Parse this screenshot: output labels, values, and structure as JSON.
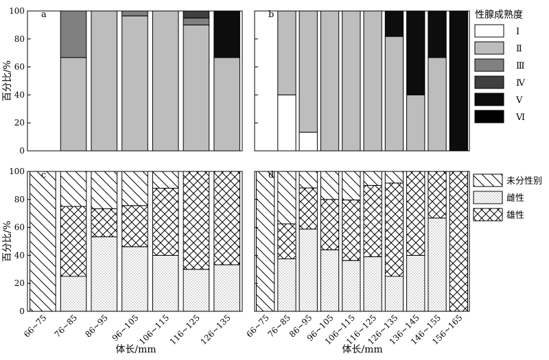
{
  "figure": {
    "ylabel": "百分比/%",
    "xlabel": "体长/mm"
  },
  "legend_top": {
    "title": "性腺成熟度",
    "items": [
      {
        "label": "Ⅰ",
        "fill": "#ffffff"
      },
      {
        "label": "Ⅱ",
        "fill": "#bdbdbd"
      },
      {
        "label": "Ⅲ",
        "fill": "#808080"
      },
      {
        "label": "Ⅳ",
        "fill": "#404040"
      },
      {
        "label": "Ⅴ",
        "fill": "#0d0d0d"
      },
      {
        "label": "Ⅵ",
        "fill": "#000000"
      }
    ]
  },
  "legend_bottom": {
    "items": [
      {
        "label": "未分性别",
        "pattern": "diag"
      },
      {
        "label": "雌性",
        "pattern": "dots"
      },
      {
        "label": "雄性",
        "pattern": "cross"
      }
    ]
  },
  "chart_data": [
    {
      "panel": "a",
      "type": "bar",
      "stacked": true,
      "ylabel": "百分比/%",
      "ylim": [
        0,
        100
      ],
      "yticks": [
        0,
        20,
        40,
        60,
        80,
        100
      ],
      "categories": [
        "66~75",
        "76~85",
        "86~95",
        "96~105",
        "106~115",
        "116~125",
        "126~135"
      ],
      "series": [
        {
          "name": "Ⅰ",
          "values": [
            0,
            0,
            0,
            0,
            0,
            0,
            0
          ]
        },
        {
          "name": "Ⅱ",
          "values": [
            0,
            66.7,
            100,
            96.5,
            100,
            90,
            66.7
          ]
        },
        {
          "name": "Ⅲ",
          "values": [
            0,
            33.3,
            0,
            3.5,
            0,
            5,
            0
          ]
        },
        {
          "name": "Ⅳ",
          "values": [
            0,
            0,
            0,
            0,
            0,
            5,
            0
          ]
        },
        {
          "name": "Ⅴ",
          "values": [
            0,
            0,
            0,
            0,
            0,
            0,
            33.3
          ]
        },
        {
          "name": "Ⅵ",
          "values": [
            0,
            0,
            0,
            0,
            0,
            0,
            0
          ]
        }
      ]
    },
    {
      "panel": "b",
      "type": "bar",
      "stacked": true,
      "ylim": [
        0,
        100
      ],
      "yticks": [
        0,
        20,
        40,
        60,
        80,
        100
      ],
      "categories": [
        "66~75",
        "76~85",
        "86~95",
        "96~105",
        "106~115",
        "116~125",
        "126~135",
        "136~145",
        "146~155",
        "156~165"
      ],
      "series": [
        {
          "name": "Ⅰ",
          "values": [
            0,
            40,
            13.3,
            0,
            0,
            0,
            0,
            0,
            0,
            0
          ]
        },
        {
          "name": "Ⅱ",
          "values": [
            0,
            60,
            86.7,
            100,
            100,
            100,
            81.8,
            40,
            66.7,
            0
          ]
        },
        {
          "name": "Ⅲ",
          "values": [
            0,
            0,
            0,
            0,
            0,
            0,
            0,
            0,
            0,
            0
          ]
        },
        {
          "name": "Ⅳ",
          "values": [
            0,
            0,
            0,
            0,
            0,
            0,
            0,
            0,
            0,
            0
          ]
        },
        {
          "name": "Ⅴ",
          "values": [
            0,
            0,
            0,
            0,
            0,
            0,
            18.2,
            60,
            33.3,
            100
          ]
        },
        {
          "name": "Ⅵ",
          "values": [
            0,
            0,
            0,
            0,
            0,
            0,
            0,
            0,
            0,
            0
          ]
        }
      ]
    },
    {
      "panel": "c",
      "type": "bar",
      "stacked": true,
      "ylabel": "百分比/%",
      "xlabel": "体长/mm",
      "ylim": [
        0,
        100
      ],
      "yticks": [
        0,
        20,
        40,
        60,
        80,
        100
      ],
      "categories": [
        "66~75",
        "76~85",
        "86~95",
        "96~105",
        "106~115",
        "116~125",
        "126~135"
      ],
      "series": [
        {
          "name": "雌性",
          "values": [
            0,
            25,
            53.3,
            46.2,
            40,
            30,
            33.3
          ]
        },
        {
          "name": "雄性",
          "values": [
            0,
            50,
            20,
            29.4,
            48,
            70,
            66.7
          ]
        },
        {
          "name": "未分性别",
          "values": [
            100,
            25,
            26.7,
            24.4,
            12,
            0,
            0
          ]
        }
      ]
    },
    {
      "panel": "d",
      "type": "bar",
      "stacked": true,
      "xlabel": "体长/mm",
      "ylim": [
        0,
        100
      ],
      "yticks": [
        0,
        20,
        40,
        60,
        80,
        100
      ],
      "categories": [
        "66~75",
        "76~85",
        "86~95",
        "96~105",
        "106~115",
        "116~125",
        "126~135",
        "136~145",
        "146~155",
        "156~165"
      ],
      "series": [
        {
          "name": "雌性",
          "values": [
            0,
            37.5,
            58.8,
            44,
            36.4,
            39,
            25,
            40,
            66.7,
            0
          ]
        },
        {
          "name": "雄性",
          "values": [
            0,
            25,
            29.4,
            36,
            43.2,
            51,
            66.7,
            60,
            33.3,
            100
          ]
        },
        {
          "name": "未分性别",
          "values": [
            100,
            37.5,
            11.8,
            20,
            20.4,
            10,
            8.3,
            0,
            0,
            0
          ]
        }
      ]
    }
  ]
}
